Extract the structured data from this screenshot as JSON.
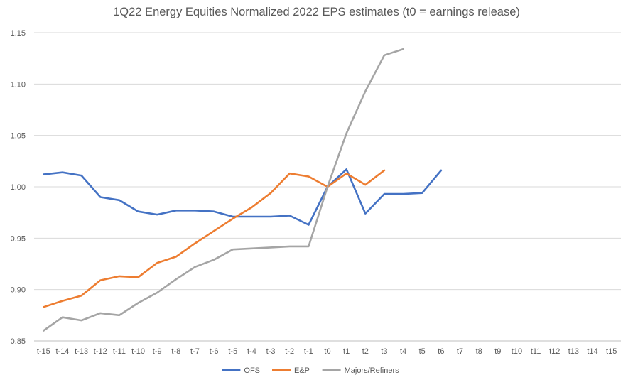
{
  "chart_data": {
    "type": "line",
    "title": "1Q22 Energy Equities Normalized 2022 EPS estimates (t0 = earnings release)",
    "xlabel": "",
    "ylabel": "",
    "categories": [
      "t-15",
      "t-14",
      "t-13",
      "t-12",
      "t-11",
      "t-10",
      "t-9",
      "t-8",
      "t-7",
      "t-6",
      "t-5",
      "t-4",
      "t-3",
      "t-2",
      "t-1",
      "t0",
      "t1",
      "t2",
      "t3",
      "t4",
      "t5",
      "t6",
      "t7",
      "t8",
      "t9",
      "t10",
      "t11",
      "t12",
      "t13",
      "t14",
      "t15"
    ],
    "y_ticks": [
      "0.85",
      "0.90",
      "0.95",
      "1.00",
      "1.05",
      "1.10",
      "1.15"
    ],
    "ylim": [
      0.85,
      1.15
    ],
    "grid": true,
    "legend_position": "bottom",
    "series": [
      {
        "name": "OFS",
        "color": "#4472C4",
        "values": [
          1.012,
          1.014,
          1.011,
          0.99,
          0.987,
          0.976,
          0.973,
          0.977,
          0.977,
          0.976,
          0.971,
          0.971,
          0.971,
          0.972,
          0.963,
          1.0,
          1.017,
          0.974,
          0.993,
          0.993,
          0.994,
          1.016,
          null,
          null,
          null,
          null,
          null,
          null,
          null,
          null,
          null
        ]
      },
      {
        "name": "E&P",
        "color": "#ED7D31",
        "values": [
          0.883,
          0.889,
          0.894,
          0.909,
          0.913,
          0.912,
          0.926,
          0.932,
          0.945,
          0.957,
          0.969,
          0.98,
          0.994,
          1.013,
          1.01,
          1.0,
          1.013,
          1.002,
          1.016,
          null,
          null,
          null,
          null,
          null,
          null,
          null,
          null,
          null,
          null,
          null,
          null
        ]
      },
      {
        "name": "Majors/Refiners",
        "color": "#A5A5A5",
        "values": [
          0.86,
          0.873,
          0.87,
          0.877,
          0.875,
          0.887,
          0.897,
          0.91,
          0.922,
          0.929,
          0.939,
          0.94,
          0.941,
          0.942,
          0.942,
          1.0,
          1.052,
          1.093,
          1.128,
          1.134,
          null,
          null,
          null,
          null,
          null,
          null,
          null,
          null,
          null,
          null,
          null
        ]
      }
    ]
  }
}
